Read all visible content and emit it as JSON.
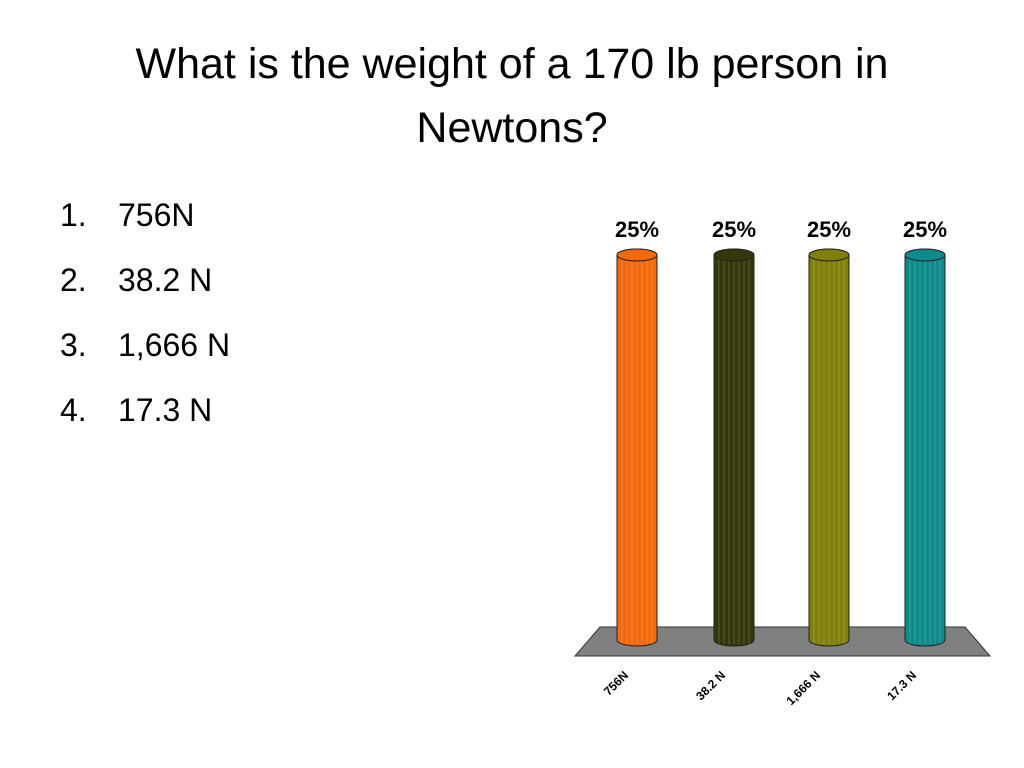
{
  "title": "What is the weight of a 170 lb person in Newtons?",
  "list": [
    {
      "marker": "1.",
      "text": "756N"
    },
    {
      "marker": "2.",
      "text": "38.2 N"
    },
    {
      "marker": "3.",
      "text": "1,666 N"
    },
    {
      "marker": "4.",
      "text": "17.3 N"
    }
  ],
  "chart_data": {
    "type": "bar",
    "categories": [
      "756N",
      "38.2 N",
      "1,666 N",
      "17.3 N"
    ],
    "values": [
      25,
      25,
      25,
      25
    ],
    "value_labels": [
      "25%",
      "25%",
      "25%",
      "25%"
    ],
    "colors": [
      "#f26a0c",
      "#36360b",
      "#80800a",
      "#0f8a8a"
    ]
  }
}
